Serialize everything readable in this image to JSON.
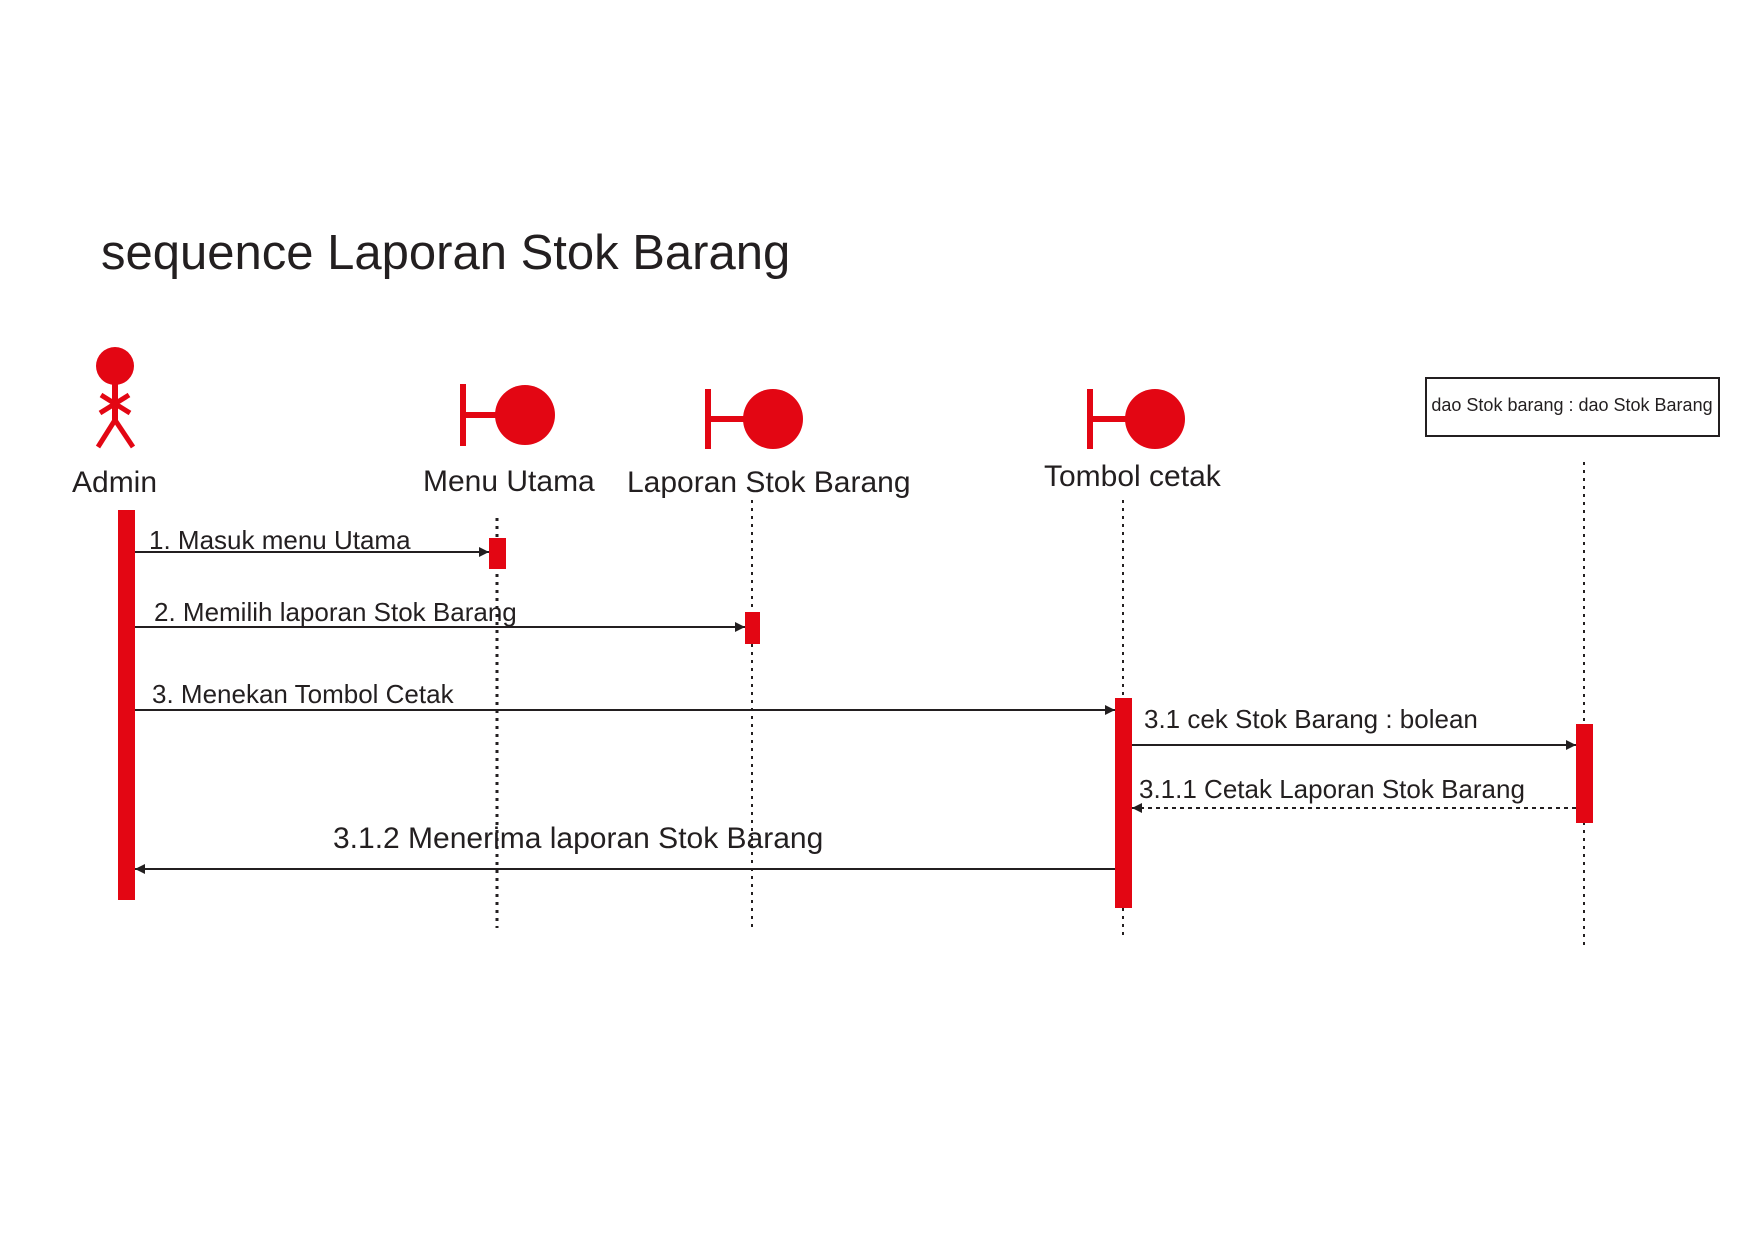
{
  "diagram": {
    "title": "sequence Laporan Stok Barang",
    "colors": {
      "accent": "#e30613",
      "line": "#231f20",
      "background": "#ffffff"
    },
    "participants": [
      {
        "id": "admin",
        "label": "Admin",
        "kind": "actor",
        "icon": "actor-icon"
      },
      {
        "id": "menu-utama",
        "label": "Menu Utama",
        "kind": "boundary",
        "icon": "boundary-icon"
      },
      {
        "id": "laporan-stok-barang",
        "label": "Laporan Stok Barang",
        "kind": "boundary",
        "icon": "boundary-icon"
      },
      {
        "id": "tombol-cetak",
        "label": "Tombol cetak",
        "kind": "boundary",
        "icon": "boundary-icon"
      },
      {
        "id": "dao-stok-barang",
        "label": "dao Stok barang : dao Stok Barang",
        "kind": "object"
      }
    ],
    "messages": [
      {
        "label": "1. Masuk menu Utama",
        "from": "admin",
        "to": "menu-utama",
        "style": "solid"
      },
      {
        "label": "2. Memilih laporan Stok Barang",
        "from": "admin",
        "to": "laporan-stok-barang",
        "style": "solid"
      },
      {
        "label": "3. Menekan Tombol Cetak",
        "from": "admin",
        "to": "tombol-cetak",
        "style": "solid"
      },
      {
        "label": "3.1 cek Stok Barang : bolean",
        "from": "tombol-cetak",
        "to": "dao-stok-barang",
        "style": "solid"
      },
      {
        "label": "3.1.1 Cetak Laporan Stok Barang",
        "from": "dao-stok-barang",
        "to": "tombol-cetak",
        "style": "dashed"
      },
      {
        "label": "3.1.2 Menerima laporan Stok Barang",
        "from": "tombol-cetak",
        "to": "admin",
        "style": "solid"
      }
    ]
  }
}
